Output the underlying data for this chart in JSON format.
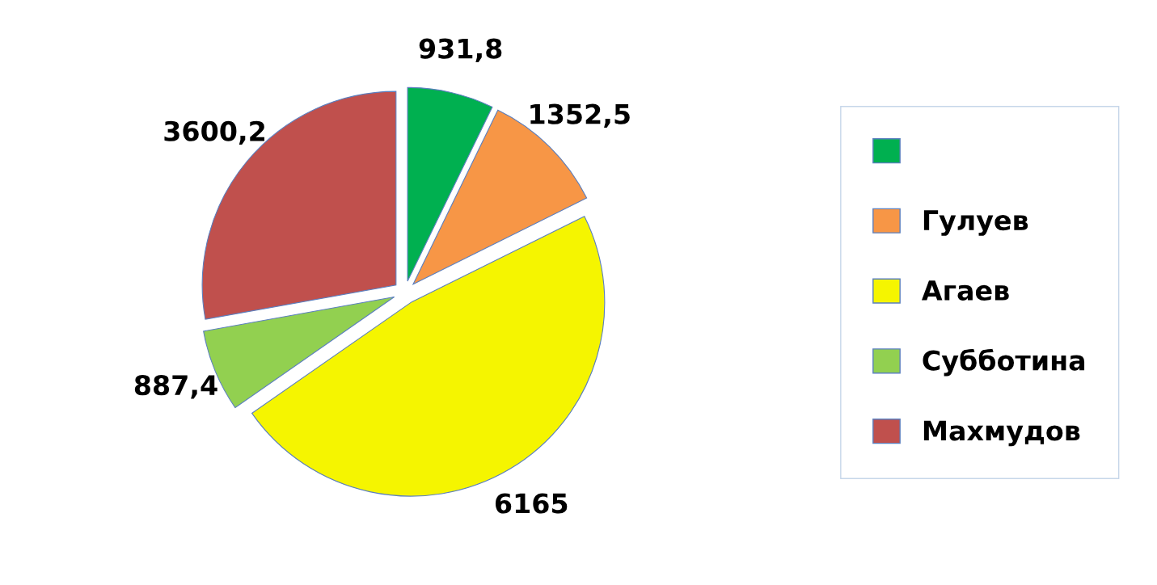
{
  "chart_data": {
    "type": "pie",
    "categories": [
      null,
      "Гулуев",
      "Агаев",
      "Субботина",
      "Махмудов"
    ],
    "values": [
      931.8,
      1352.5,
      6165,
      887.4,
      3600.2
    ],
    "value_labels": [
      "931,8",
      "1352,5",
      "6165",
      "887,4",
      "3600,2"
    ],
    "colors": [
      "#00b050",
      "#f79646",
      "#f5f500",
      "#92d050",
      "#c0504d"
    ],
    "legend": "right"
  }
}
